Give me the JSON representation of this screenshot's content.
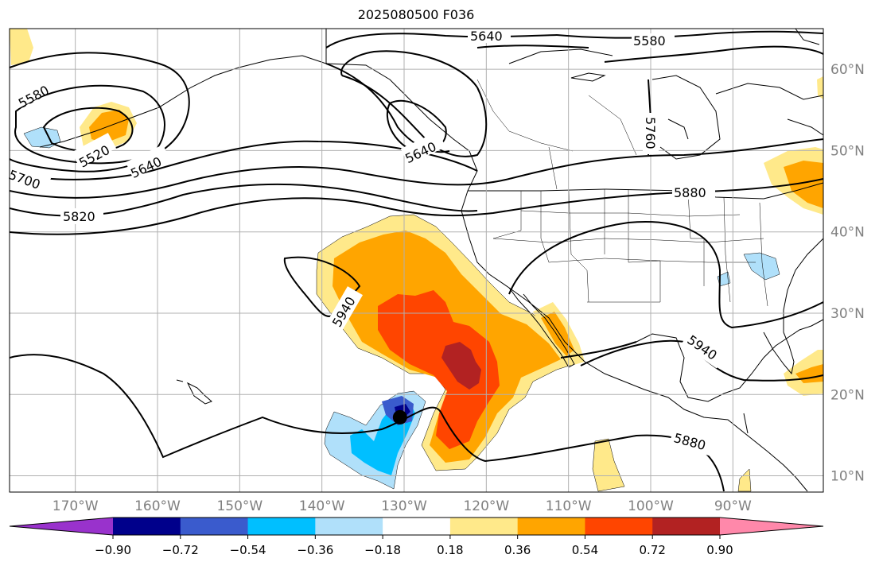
{
  "title": "2025080500 F036",
  "map": {
    "lon_labels": [
      "170°W",
      "160°W",
      "150°W",
      "140°W",
      "130°W",
      "120°W",
      "110°W",
      "100°W",
      "90°W"
    ],
    "lat_labels": [
      "60°N",
      "50°N",
      "40°N",
      "30°N",
      "20°N",
      "10°N"
    ],
    "lon_values": [
      -170,
      -160,
      -150,
      -140,
      -130,
      -120,
      -110,
      -100,
      -90
    ],
    "lat_values": [
      60,
      50,
      40,
      30,
      20,
      10
    ],
    "extent": {
      "lon_min": -178,
      "lon_max": -79,
      "lat_min": 8,
      "lat_max": 65
    },
    "contour_labels": [
      "5640",
      "5580",
      "5580",
      "5520",
      "5640",
      "5700",
      "5820",
      "5640",
      "5760",
      "5880",
      "5940",
      "5940",
      "5880"
    ],
    "tc_marker": {
      "lon": -130.5,
      "lat": 17.2
    },
    "colors": {
      "grid": "#b0b0b0",
      "tick_label": "#808080",
      "contour": "#000000"
    }
  },
  "colorbar": {
    "ticks": [
      "−0.90",
      "−0.72",
      "−0.54",
      "−0.36",
      "−0.18",
      "0.18",
      "0.36",
      "0.54",
      "0.72",
      "0.90"
    ],
    "bins": [
      {
        "color": "#9932cc"
      },
      {
        "color": "#00008b"
      },
      {
        "color": "#3a5bcd"
      },
      {
        "color": "#00bfff"
      },
      {
        "color": "#b0e0fa"
      },
      {
        "color": "#ffffff"
      },
      {
        "color": "#ffe98a"
      },
      {
        "color": "#ffa500"
      },
      {
        "color": "#ff4500"
      },
      {
        "color": "#b22222"
      },
      {
        "color": "#ff88aa"
      }
    ]
  }
}
